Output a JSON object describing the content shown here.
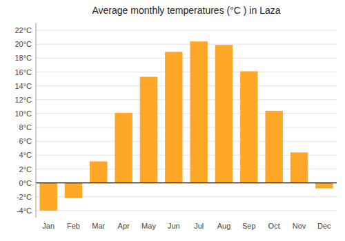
{
  "chart_data": {
    "type": "bar",
    "title": "Average monthly temperatures (°C ) in Laza",
    "categories": [
      "Jan",
      "Feb",
      "Mar",
      "Apr",
      "May",
      "Jun",
      "Jul",
      "Aug",
      "Sep",
      "Oct",
      "Nov",
      "Dec"
    ],
    "values": [
      -4.0,
      -2.2,
      3.1,
      10.1,
      15.3,
      18.9,
      20.4,
      19.9,
      16.1,
      10.4,
      4.4,
      -0.8
    ],
    "color": "#FFA726",
    "ylim": [
      -5,
      23
    ],
    "yticks": [
      {
        "value": -4,
        "label": "-4°C"
      },
      {
        "value": -2,
        "label": "-2°C"
      },
      {
        "value": 0,
        "label": "0°C"
      },
      {
        "value": 2,
        "label": "2°C"
      },
      {
        "value": 4,
        "label": "4°C"
      },
      {
        "value": 6,
        "label": "6°C"
      },
      {
        "value": 8,
        "label": "8°C"
      },
      {
        "value": 10,
        "label": "10°C"
      },
      {
        "value": 12,
        "label": "12°C"
      },
      {
        "value": 14,
        "label": "14°C"
      },
      {
        "value": 16,
        "label": "16°C"
      },
      {
        "value": 18,
        "label": "18°C"
      },
      {
        "value": 20,
        "label": "20°C"
      },
      {
        "value": 22,
        "label": "22°C"
      }
    ],
    "grid": true
  }
}
